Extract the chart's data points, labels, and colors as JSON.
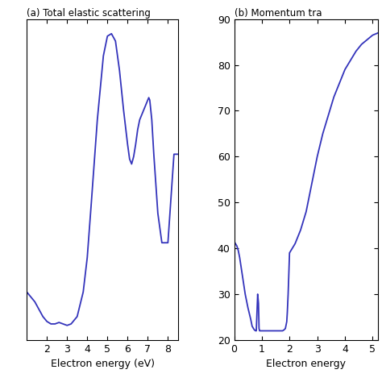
{
  "title_a": "(a) Total elastic scattering",
  "title_b": "(b) Momentum tra",
  "xlabel_a": "Electron energy (eV)",
  "xlabel_b": "Electron energy",
  "line_color": "#3333bb",
  "panel_a": {
    "x": [
      1.0,
      1.1,
      1.2,
      1.4,
      1.6,
      1.8,
      2.0,
      2.2,
      2.4,
      2.6,
      2.8,
      3.0,
      3.2,
      3.5,
      3.8,
      4.0,
      4.2,
      4.5,
      4.8,
      5.0,
      5.2,
      5.4,
      5.6,
      5.8,
      6.0,
      6.1,
      6.2,
      6.3,
      6.4,
      6.5,
      6.6,
      6.8,
      7.0,
      7.05,
      7.1,
      7.2,
      7.3,
      7.5,
      7.7,
      8.0,
      8.3,
      8.5
    ],
    "y": [
      28,
      27.5,
      27,
      26,
      24.5,
      23,
      22,
      21.5,
      21.5,
      21.8,
      21.5,
      21.2,
      21.5,
      23,
      28,
      35,
      46,
      63,
      76,
      80,
      80.5,
      79,
      73,
      65,
      58,
      55,
      54,
      55.5,
      58,
      61,
      63,
      65,
      67,
      67.5,
      67,
      63,
      56,
      44,
      38,
      38,
      56,
      56
    ],
    "xlim": [
      1.0,
      8.5
    ],
    "xticks": [
      2,
      3,
      4,
      5,
      6,
      7,
      8
    ]
  },
  "panel_b": {
    "x": [
      0.0,
      0.05,
      0.1,
      0.15,
      0.2,
      0.3,
      0.4,
      0.5,
      0.6,
      0.65,
      0.7,
      0.72,
      0.75,
      0.78,
      0.8,
      0.85,
      0.88,
      0.9,
      0.92,
      0.95,
      1.0,
      1.05,
      1.1,
      1.2,
      1.3,
      1.4,
      1.5,
      1.6,
      1.65,
      1.7,
      1.75,
      1.8,
      1.85,
      1.9,
      1.92,
      1.95,
      2.0,
      2.1,
      2.2,
      2.4,
      2.6,
      2.8,
      3.0,
      3.2,
      3.4,
      3.6,
      3.8,
      4.0,
      4.2,
      4.4,
      4.6,
      4.8,
      5.0,
      5.2
    ],
    "y": [
      41.5,
      41,
      40.5,
      39.5,
      38,
      34,
      30,
      27,
      24.5,
      23,
      22.5,
      22.3,
      22.1,
      22.0,
      22.0,
      30,
      28,
      22.5,
      22,
      22,
      22,
      22,
      22,
      22,
      22,
      22,
      22,
      22,
      22,
      22,
      22,
      22.2,
      22.5,
      24,
      26,
      30,
      39,
      40,
      41,
      44,
      48,
      54,
      60,
      65,
      69,
      73,
      76,
      79,
      81,
      83,
      84.5,
      85.5,
      86.5,
      87
    ],
    "xlim": [
      0,
      5.2
    ],
    "ylim": [
      20,
      90
    ],
    "yticks": [
      20,
      30,
      40,
      50,
      60,
      70,
      80,
      90
    ],
    "xticks": [
      0,
      1,
      2,
      3,
      4,
      5
    ]
  },
  "figsize": [
    4.74,
    4.74
  ],
  "dpi": 100
}
